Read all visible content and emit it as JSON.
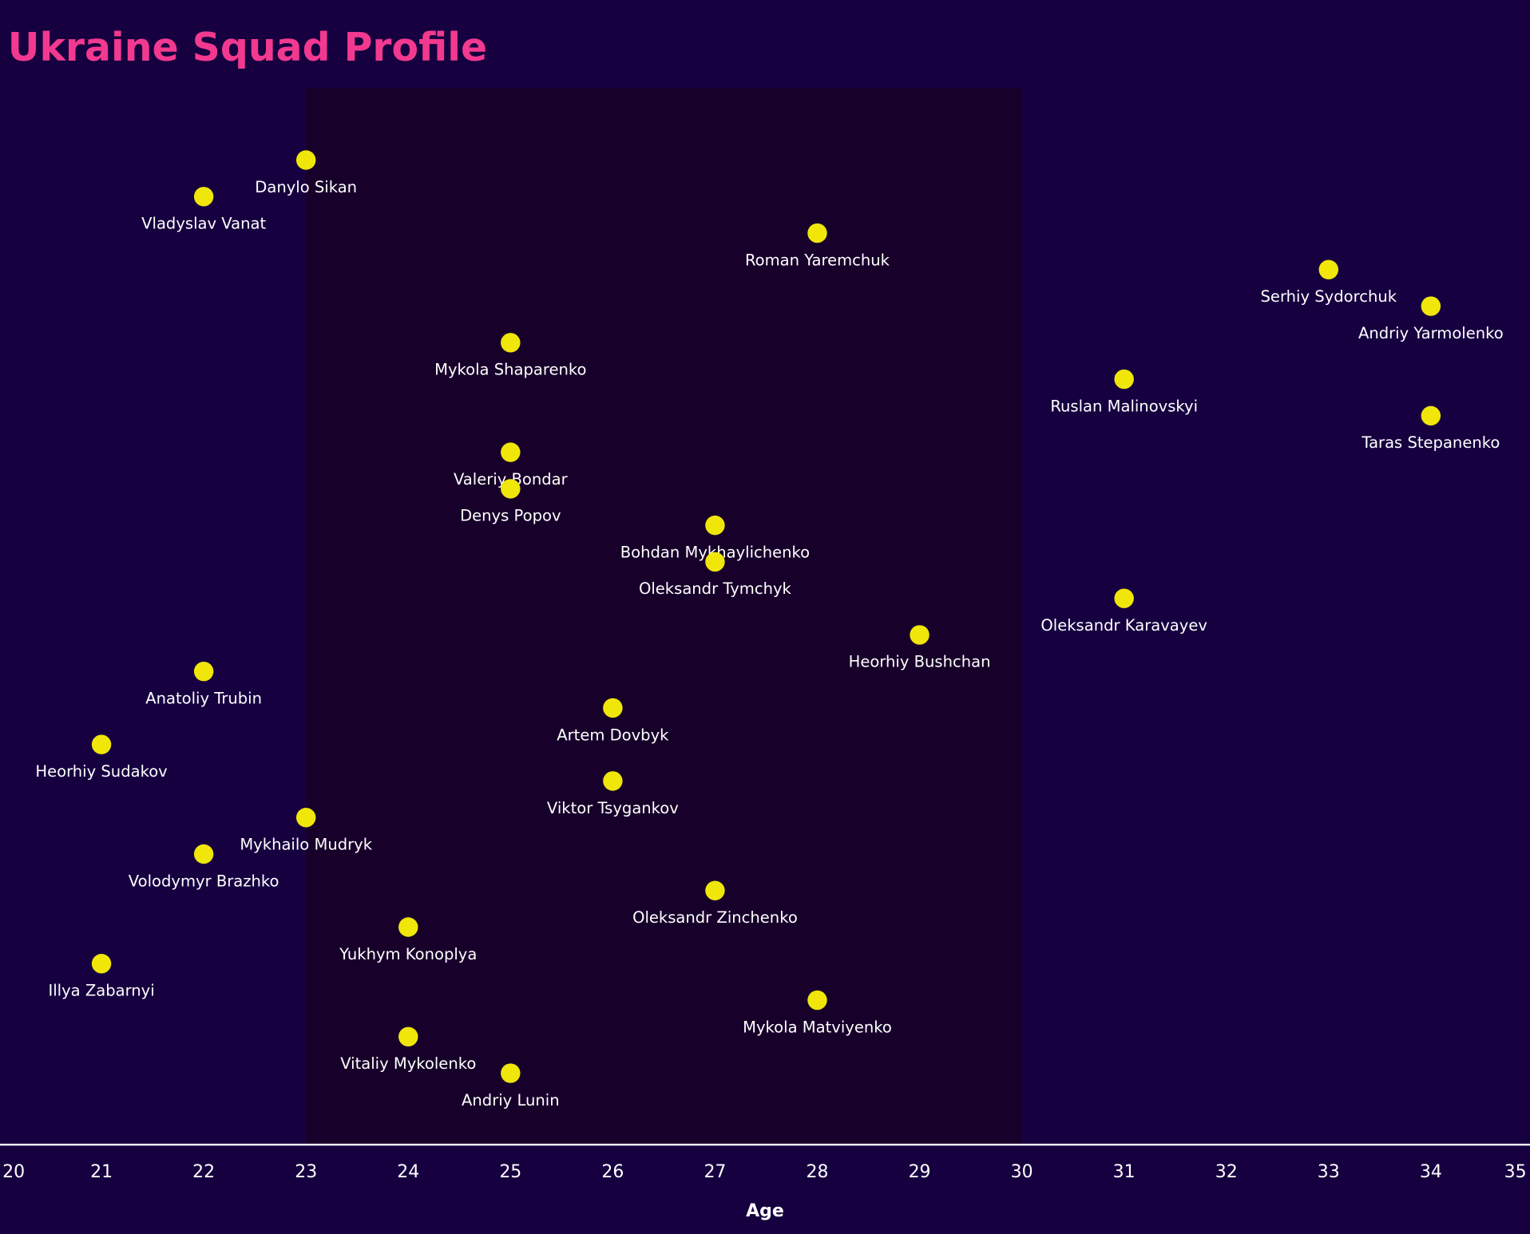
{
  "chart_data": {
    "type": "scatter",
    "title": "Ukraine Squad Profile",
    "xlabel": "Age",
    "ylabel": "",
    "xlim": [
      20,
      35
    ],
    "xticks": [
      20,
      21,
      22,
      23,
      24,
      25,
      26,
      27,
      28,
      29,
      30,
      31,
      32,
      33,
      34,
      35
    ],
    "highlight_band": [
      23,
      30
    ],
    "grid": false,
    "colors": {
      "background": "#160040",
      "band": "#17002a",
      "point": "#f0e60a",
      "title": "#f2398f",
      "text": "#ffffff"
    },
    "points": [
      {
        "name": "Danylo Sikan",
        "age": 23
      },
      {
        "name": "Vladyslav Vanat",
        "age": 22
      },
      {
        "name": "Roman Yaremchuk",
        "age": 28
      },
      {
        "name": "Serhiy Sydorchuk",
        "age": 33
      },
      {
        "name": "Andriy Yarmolenko",
        "age": 34
      },
      {
        "name": "Mykola Shaparenko",
        "age": 25
      },
      {
        "name": "Ruslan Malinovskyi",
        "age": 31
      },
      {
        "name": "Taras Stepanenko",
        "age": 34
      },
      {
        "name": "Valeriy Bondar",
        "age": 25
      },
      {
        "name": "Denys Popov",
        "age": 25
      },
      {
        "name": "Bohdan Mykhaylichenko",
        "age": 27
      },
      {
        "name": "Oleksandr Tymchyk",
        "age": 27
      },
      {
        "name": "Oleksandr Karavayev",
        "age": 31
      },
      {
        "name": "Heorhiy Bushchan",
        "age": 29
      },
      {
        "name": "Anatoliy Trubin",
        "age": 22
      },
      {
        "name": "Artem Dovbyk",
        "age": 26
      },
      {
        "name": "Heorhiy Sudakov",
        "age": 21
      },
      {
        "name": "Viktor Tsygankov",
        "age": 26
      },
      {
        "name": "Mykhailo Mudryk",
        "age": 23
      },
      {
        "name": "Volodymyr Brazhko",
        "age": 22
      },
      {
        "name": "Oleksandr Zinchenko",
        "age": 27
      },
      {
        "name": "Yukhym Konoplya",
        "age": 24
      },
      {
        "name": "Illya Zabarnyi",
        "age": 21
      },
      {
        "name": "Mykola Matviyenko",
        "age": 28
      },
      {
        "name": "Vitaliy Mykolenko",
        "age": 24
      },
      {
        "name": "Andriy Lunin",
        "age": 25
      }
    ]
  }
}
